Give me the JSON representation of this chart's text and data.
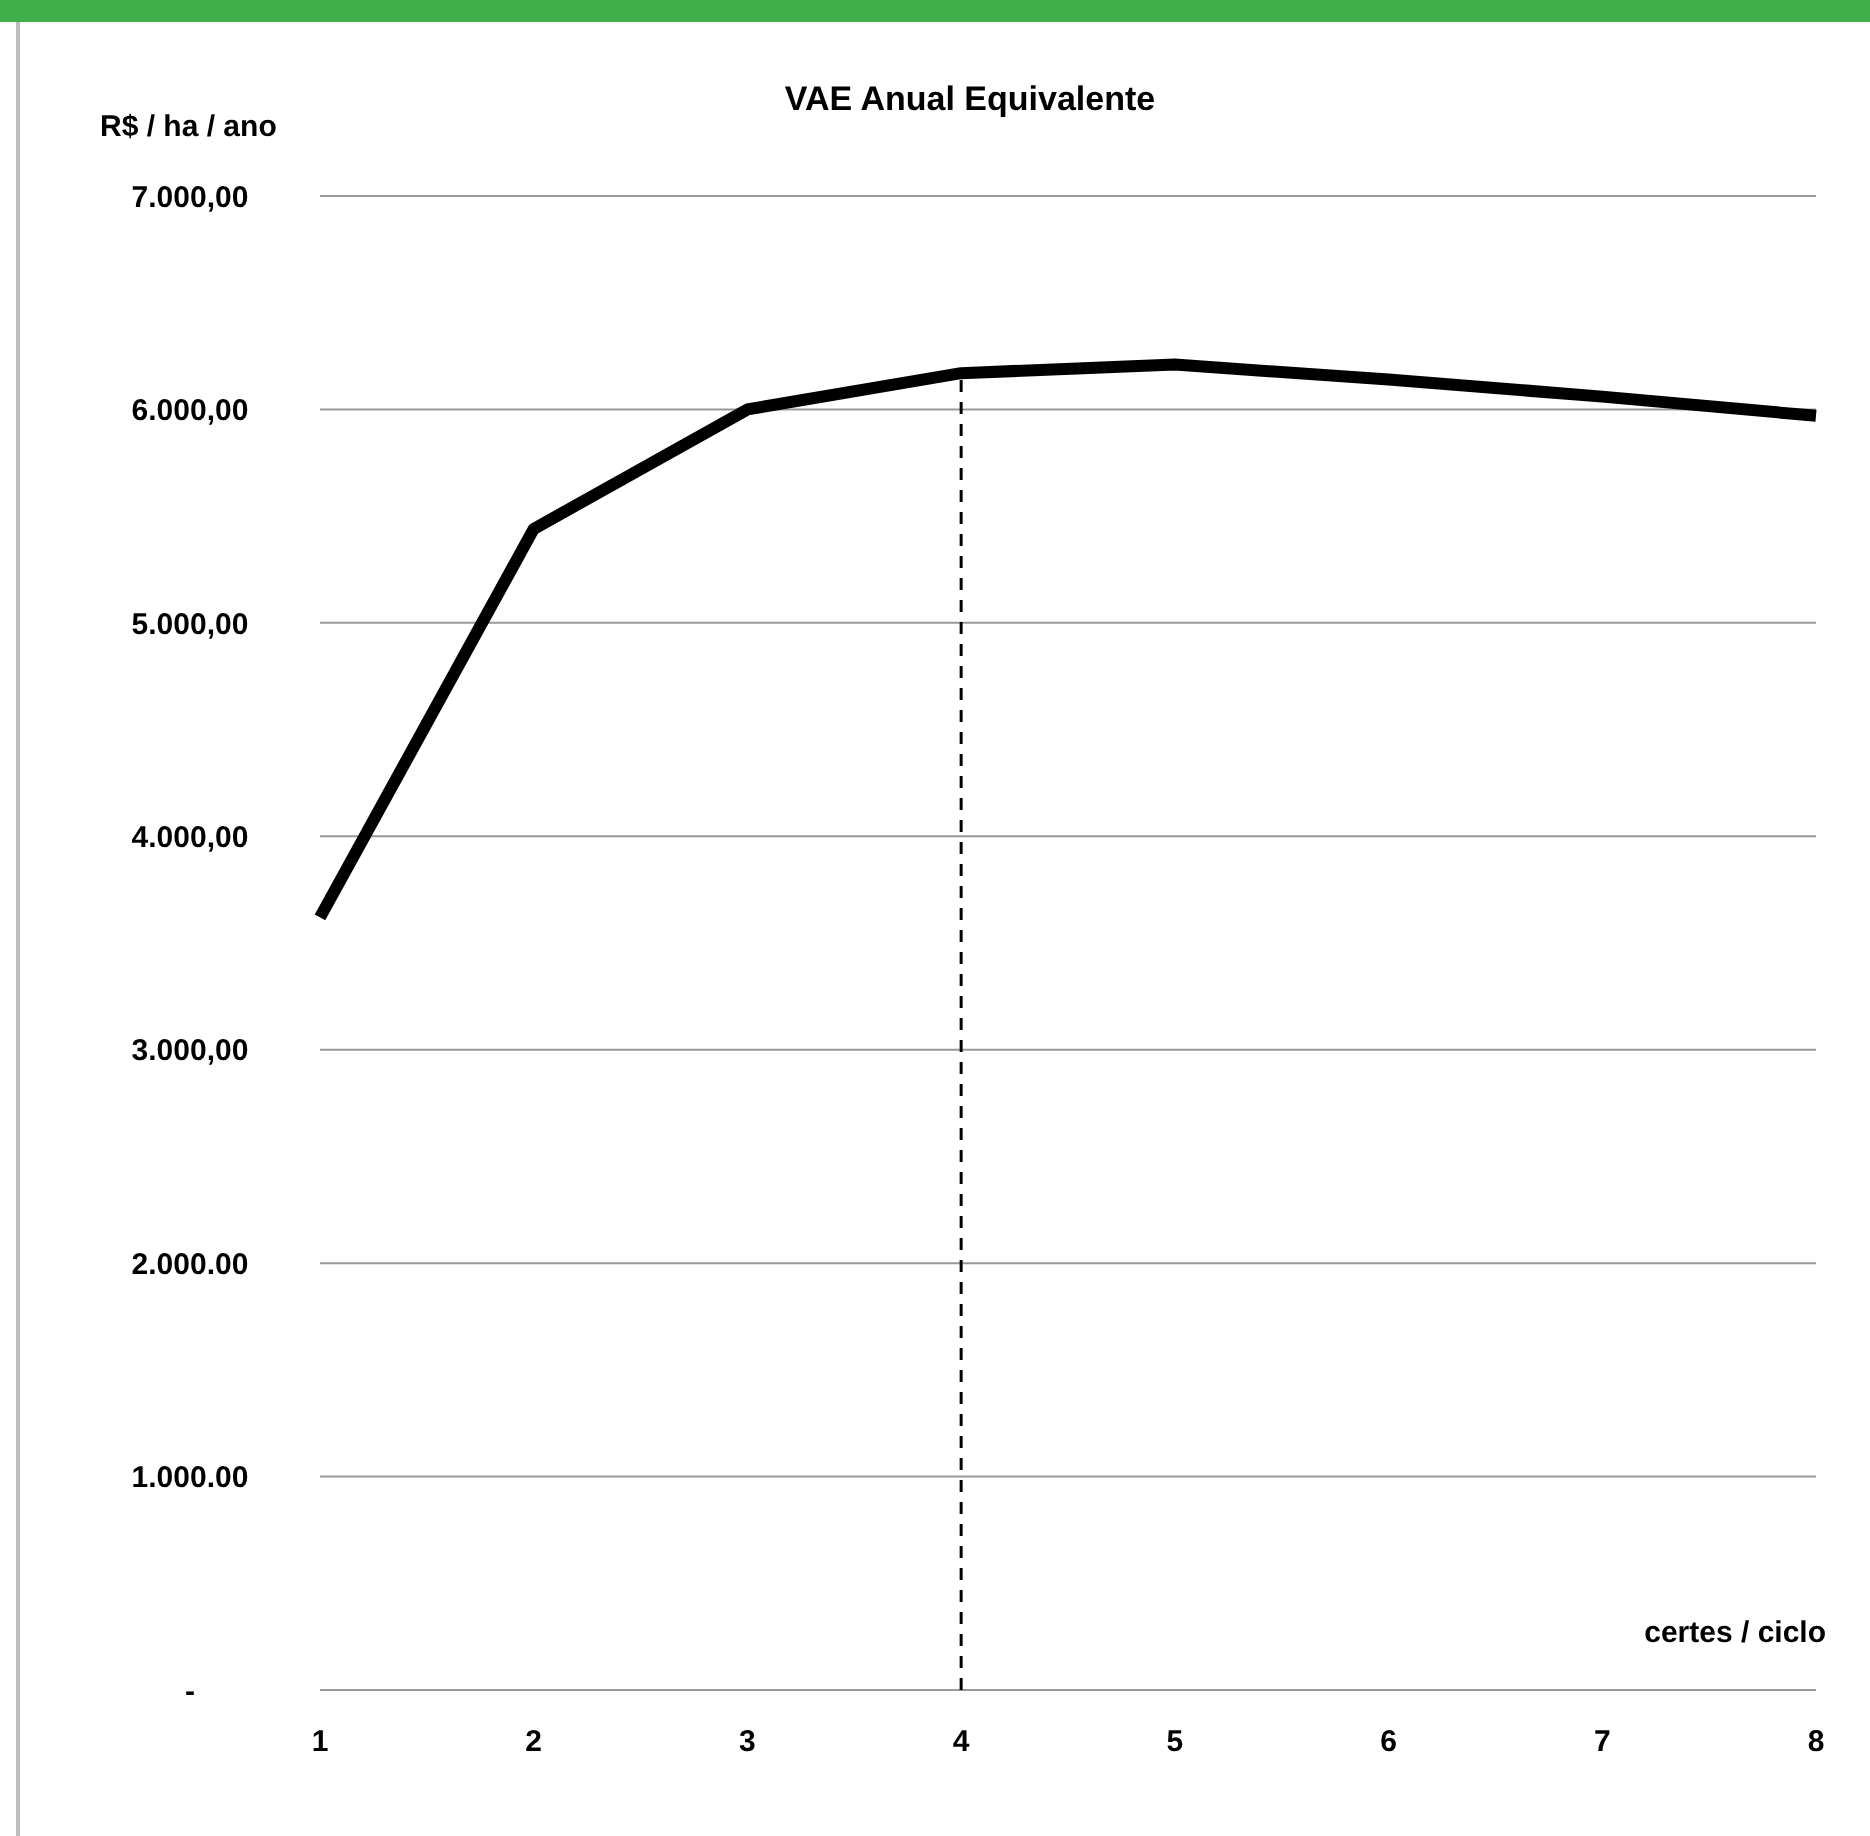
{
  "chart_data": {
    "type": "line",
    "title": "VAE Anual Equivalente",
    "ylabel": "R$ / ha / ano",
    "xlabel": "certes / ciclo",
    "categories": [
      "1",
      "2",
      "3",
      "4",
      "5",
      "6",
      "7",
      "8"
    ],
    "series": [
      {
        "color": "#000000",
        "values": [
          3620,
          5440,
          6000,
          6170,
          6210,
          6140,
          6060,
          5970
        ]
      }
    ],
    "ylim": [
      0,
      7000
    ],
    "yticks": [
      {
        "value": 0,
        "label": "-"
      },
      {
        "value": 1000,
        "label": "1.000.00"
      },
      {
        "value": 2000,
        "label": "2.000.00"
      },
      {
        "value": 3000,
        "label": "3.000,00"
      },
      {
        "value": 4000,
        "label": "4.000,00"
      },
      {
        "value": 5000,
        "label": "5.000,00"
      },
      {
        "value": 6000,
        "label": "6.000,00"
      },
      {
        "value": 7000,
        "label": "7.000,00"
      }
    ],
    "grid": "y",
    "marker": "none",
    "line_style": "solid",
    "legend": false,
    "ref_lines": [
      {
        "axis": "x",
        "value": "4",
        "line_style": "dashed",
        "color": "#000000"
      }
    ]
  }
}
